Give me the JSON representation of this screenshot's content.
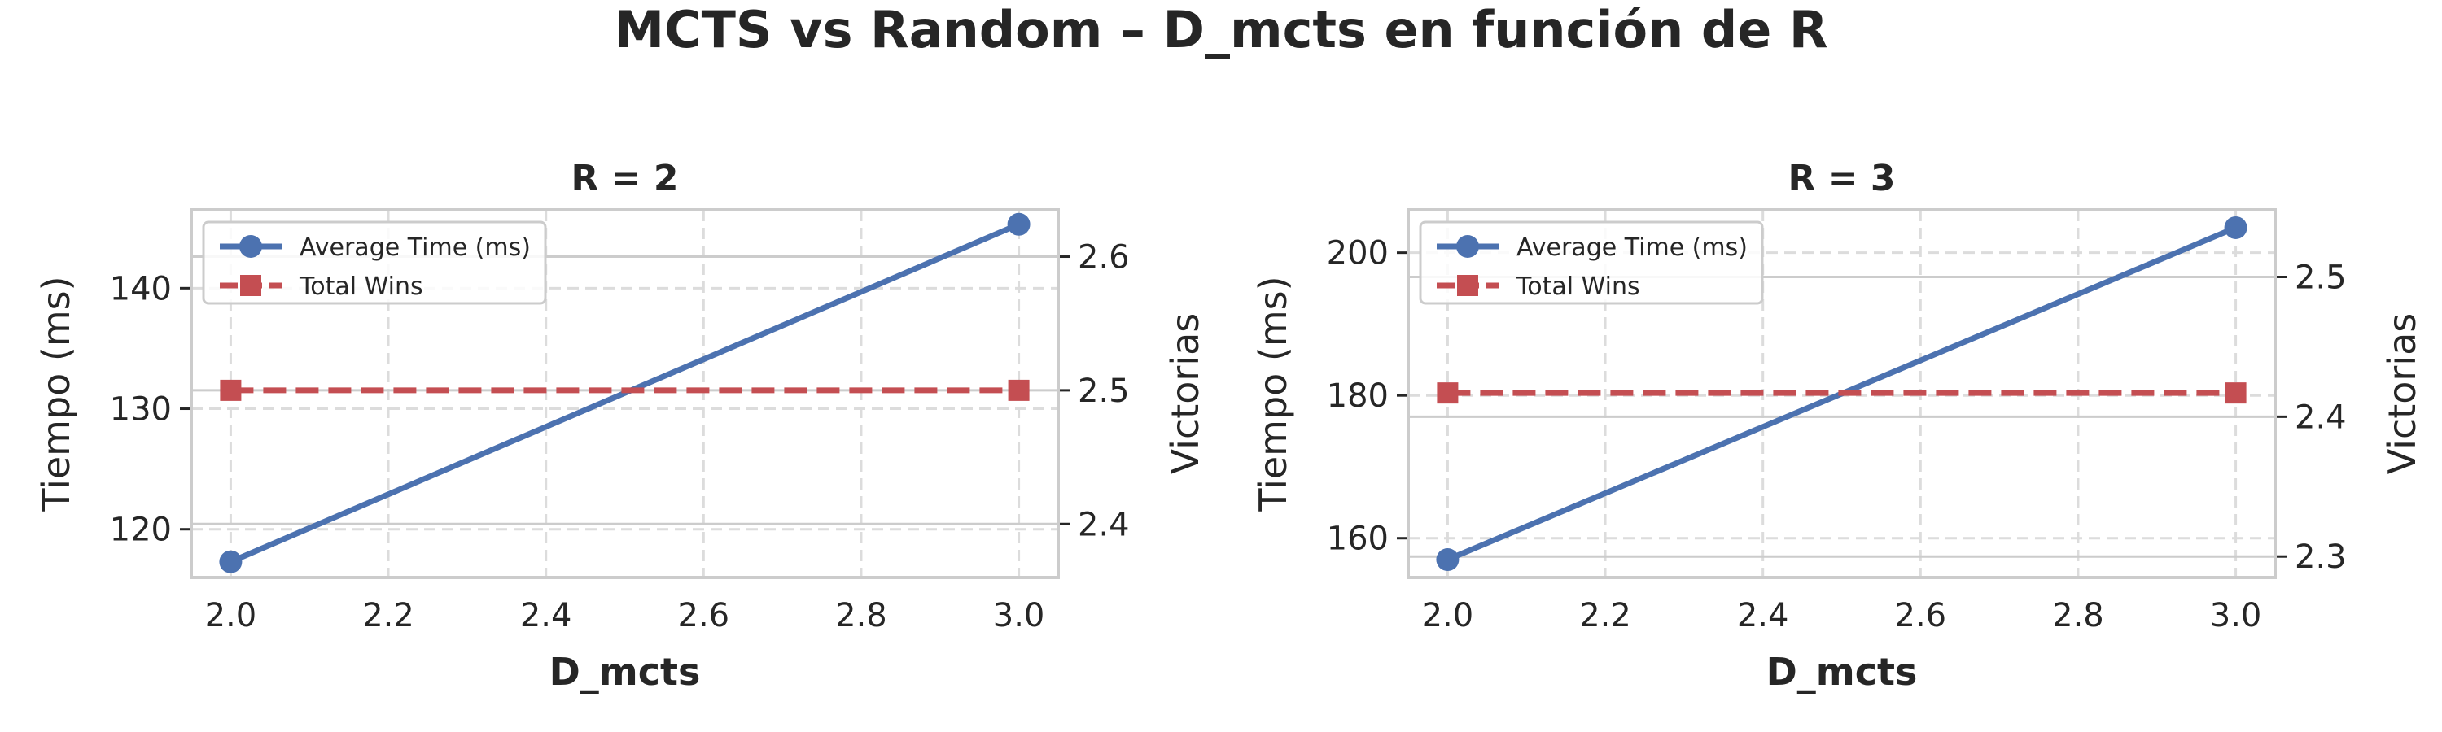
{
  "title": "MCTS vs Random – D_mcts en función de R",
  "chart_data": [
    {
      "type": "line",
      "title": "R = 2",
      "xlabel": "D_mcts",
      "ylabel": "Tiempo (ms)",
      "y2label": "Victorias",
      "x": [
        2.0,
        3.0
      ],
      "xlim": [
        1.95,
        3.05
      ],
      "xticks": [
        "2.0",
        "2.2",
        "2.4",
        "2.6",
        "2.8",
        "3.0"
      ],
      "ylim": [
        116,
        146.5
      ],
      "yticks": [
        120,
        130,
        140
      ],
      "y2lim": [
        2.36,
        2.635
      ],
      "y2ticks": [
        2.4,
        2.5,
        2.6
      ],
      "grid": true,
      "legend_position": "upper left",
      "series": [
        {
          "name": "Average Time (ms)",
          "axis": "left",
          "values": [
            117.3,
            145.3
          ],
          "color": "#4c72b0",
          "marker": "circle",
          "linestyle": "solid"
        },
        {
          "name": "Total Wins",
          "axis": "right",
          "values": [
            2.5,
            2.5
          ],
          "color": "#c44e52",
          "marker": "square",
          "linestyle": "dashed"
        }
      ]
    },
    {
      "type": "line",
      "title": "R = 3",
      "xlabel": "D_mcts",
      "ylabel": "Tiempo (ms)",
      "y2label": "Victorias",
      "x": [
        2.0,
        3.0
      ],
      "xlim": [
        1.95,
        3.05
      ],
      "xticks": [
        "2.0",
        "2.2",
        "2.4",
        "2.6",
        "2.8",
        "3.0"
      ],
      "ylim": [
        154.5,
        206
      ],
      "yticks": [
        160,
        180,
        200
      ],
      "y2lim": [
        2.285,
        2.548
      ],
      "y2ticks": [
        2.3,
        2.4,
        2.5
      ],
      "grid": true,
      "legend_position": "upper left",
      "series": [
        {
          "name": "Average Time (ms)",
          "axis": "left",
          "values": [
            157.0,
            203.5
          ],
          "color": "#4c72b0",
          "marker": "circle",
          "linestyle": "solid"
        },
        {
          "name": "Total Wins",
          "axis": "right",
          "values": [
            2.417,
            2.417
          ],
          "color": "#c44e52",
          "marker": "square",
          "linestyle": "dashed"
        }
      ]
    }
  ]
}
